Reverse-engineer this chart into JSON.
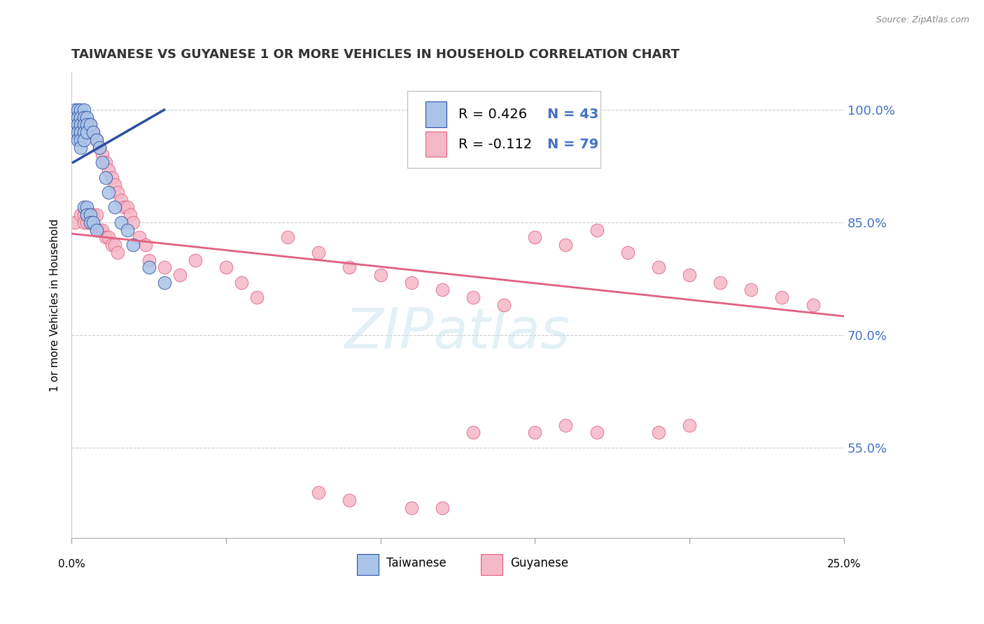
{
  "title": "TAIWANESE VS GUYANESE 1 OR MORE VEHICLES IN HOUSEHOLD CORRELATION CHART",
  "source": "Source: ZipAtlas.com",
  "ylabel": "1 or more Vehicles in Household",
  "ytick_labels": [
    "55.0%",
    "70.0%",
    "85.0%",
    "100.0%"
  ],
  "ytick_values": [
    0.55,
    0.7,
    0.85,
    1.0
  ],
  "xlim": [
    0.0,
    0.25
  ],
  "ylim": [
    0.43,
    1.05
  ],
  "legend_r_taiwanese": "0.426",
  "legend_n_taiwanese": "43",
  "legend_r_guyanese": "-0.112",
  "legend_n_guyanese": "79",
  "taiwanese_color": "#aac4e8",
  "guyanese_color": "#f5b8c8",
  "taiwanese_line_color": "#2b4fa0",
  "guyanese_line_color": "#e06080",
  "background_color": "#ffffff",
  "grid_color": "#cccccc",
  "taiwanese_x": [
    0.001,
    0.001,
    0.001,
    0.001,
    0.002,
    0.002,
    0.002,
    0.002,
    0.002,
    0.003,
    0.003,
    0.003,
    0.003,
    0.003,
    0.003,
    0.004,
    0.004,
    0.004,
    0.004,
    0.004,
    0.004,
    0.005,
    0.005,
    0.005,
    0.005,
    0.005,
    0.006,
    0.006,
    0.006,
    0.007,
    0.007,
    0.008,
    0.008,
    0.009,
    0.01,
    0.011,
    0.012,
    0.014,
    0.016,
    0.018,
    0.02,
    0.025,
    0.03
  ],
  "taiwanese_y": [
    1.0,
    0.99,
    0.98,
    0.97,
    1.0,
    0.99,
    0.98,
    0.97,
    0.96,
    1.0,
    0.99,
    0.98,
    0.97,
    0.96,
    0.95,
    1.0,
    0.99,
    0.98,
    0.97,
    0.96,
    0.87,
    0.99,
    0.98,
    0.97,
    0.87,
    0.86,
    0.98,
    0.86,
    0.85,
    0.97,
    0.85,
    0.96,
    0.84,
    0.95,
    0.93,
    0.91,
    0.89,
    0.87,
    0.85,
    0.84,
    0.82,
    0.79,
    0.77
  ],
  "guyanese_x": [
    0.001,
    0.002,
    0.002,
    0.003,
    0.003,
    0.003,
    0.004,
    0.004,
    0.004,
    0.005,
    0.005,
    0.005,
    0.005,
    0.006,
    0.006,
    0.006,
    0.006,
    0.007,
    0.007,
    0.007,
    0.008,
    0.008,
    0.008,
    0.009,
    0.009,
    0.01,
    0.01,
    0.011,
    0.011,
    0.012,
    0.012,
    0.013,
    0.013,
    0.014,
    0.014,
    0.015,
    0.015,
    0.016,
    0.017,
    0.018,
    0.019,
    0.02,
    0.022,
    0.024,
    0.025,
    0.03,
    0.035,
    0.04,
    0.05,
    0.055,
    0.06,
    0.07,
    0.08,
    0.09,
    0.1,
    0.11,
    0.12,
    0.13,
    0.14,
    0.15,
    0.16,
    0.17,
    0.18,
    0.19,
    0.2,
    0.21,
    0.22,
    0.23,
    0.24,
    0.17,
    0.19,
    0.16,
    0.15,
    0.2,
    0.13,
    0.12,
    0.11,
    0.09,
    0.08
  ],
  "guyanese_y": [
    0.85,
    0.99,
    0.97,
    0.99,
    0.97,
    0.86,
    0.98,
    0.86,
    0.85,
    0.98,
    0.97,
    0.86,
    0.85,
    0.98,
    0.97,
    0.86,
    0.85,
    0.97,
    0.86,
    0.85,
    0.96,
    0.86,
    0.84,
    0.95,
    0.84,
    0.94,
    0.84,
    0.93,
    0.83,
    0.92,
    0.83,
    0.91,
    0.82,
    0.9,
    0.82,
    0.89,
    0.81,
    0.88,
    0.87,
    0.87,
    0.86,
    0.85,
    0.83,
    0.82,
    0.8,
    0.79,
    0.78,
    0.8,
    0.79,
    0.77,
    0.75,
    0.83,
    0.81,
    0.79,
    0.78,
    0.77,
    0.76,
    0.75,
    0.74,
    0.83,
    0.82,
    0.84,
    0.81,
    0.79,
    0.78,
    0.77,
    0.76,
    0.75,
    0.74,
    0.57,
    0.57,
    0.58,
    0.57,
    0.58,
    0.57,
    0.47,
    0.47,
    0.48,
    0.49
  ],
  "tw_line_x": [
    0.0005,
    0.03
  ],
  "tw_line_y": [
    0.93,
    1.0
  ],
  "gy_line_x": [
    0.0,
    0.25
  ],
  "gy_line_y": [
    0.835,
    0.725
  ]
}
